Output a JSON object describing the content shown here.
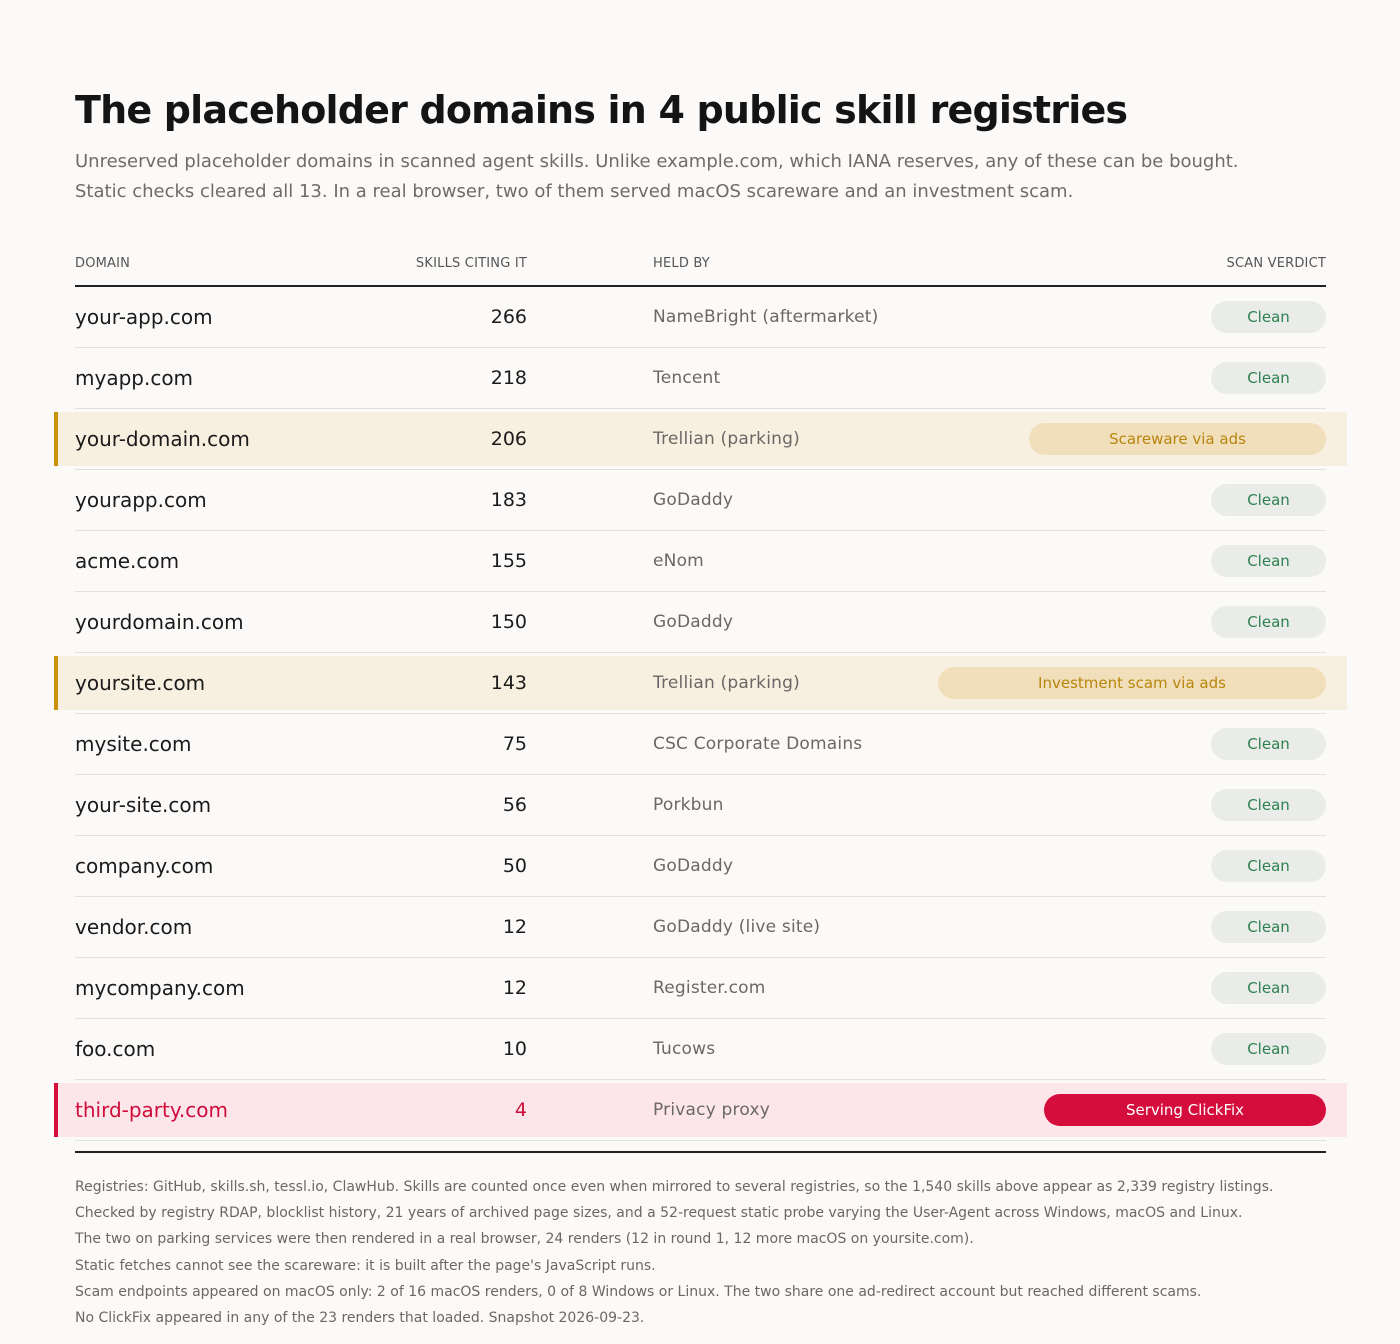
{
  "header": {
    "title": "The placeholder domains in 4 public skill registries",
    "subtitle_lines": [
      "Unreserved placeholder domains in scanned agent skills. Unlike example.com, which IANA reserves, any of these can be bought.",
      "Static checks cleared all 13. In a real browser, two of them served macOS scareware and an investment scam."
    ]
  },
  "table": {
    "columns": {
      "domain": "DOMAIN",
      "skills": "SKILLS CITING IT",
      "held_by": "HELD BY",
      "verdict": "SCAN VERDICT"
    },
    "rows": [
      {
        "domain": "your-app.com",
        "skills": "266",
        "held_by": "NameBright (aftermarket)",
        "verdict": "Clean",
        "status": "clean"
      },
      {
        "domain": "myapp.com",
        "skills": "218",
        "held_by": "Tencent",
        "verdict": "Clean",
        "status": "clean"
      },
      {
        "domain": "your-domain.com",
        "skills": "206",
        "held_by": "Trellian (parking)",
        "verdict": "Scareware via ads",
        "status": "amber"
      },
      {
        "domain": "yourapp.com",
        "skills": "183",
        "held_by": "GoDaddy",
        "verdict": "Clean",
        "status": "clean"
      },
      {
        "domain": "acme.com",
        "skills": "155",
        "held_by": "eNom",
        "verdict": "Clean",
        "status": "clean"
      },
      {
        "domain": "yourdomain.com",
        "skills": "150",
        "held_by": "GoDaddy",
        "verdict": "Clean",
        "status": "clean"
      },
      {
        "domain": "yoursite.com",
        "skills": "143",
        "held_by": "Trellian (parking)",
        "verdict": "Investment scam via ads",
        "status": "amber"
      },
      {
        "domain": "mysite.com",
        "skills": "75",
        "held_by": "CSC Corporate Domains",
        "verdict": "Clean",
        "status": "clean"
      },
      {
        "domain": "your-site.com",
        "skills": "56",
        "held_by": "Porkbun",
        "verdict": "Clean",
        "status": "clean"
      },
      {
        "domain": "company.com",
        "skills": "50",
        "held_by": "GoDaddy",
        "verdict": "Clean",
        "status": "clean"
      },
      {
        "domain": "vendor.com",
        "skills": "12",
        "held_by": "GoDaddy (live site)",
        "verdict": "Clean",
        "status": "clean"
      },
      {
        "domain": "mycompany.com",
        "skills": "12",
        "held_by": "Register.com",
        "verdict": "Clean",
        "status": "clean"
      },
      {
        "domain": "foo.com",
        "skills": "10",
        "held_by": "Tucows",
        "verdict": "Clean",
        "status": "clean"
      },
      {
        "domain": "third-party.com",
        "skills": "4",
        "held_by": "Privacy proxy",
        "verdict": "Serving ClickFix",
        "status": "red"
      }
    ]
  },
  "notes": [
    "Registries: GitHub, skills.sh, tessl.io, ClawHub. Skills are counted once even when mirrored to several registries, so the 1,540 skills above appear as 2,339 registry listings.",
    "Checked by registry RDAP, blocklist history, 21 years of archived page sizes, and a 52-request static probe varying the User-Agent across Windows, macOS and Linux.",
    "The two on parking services were then rendered in a real browser, 24 renders (12 in round 1, 12 more macOS on yoursite.com).",
    "Static fetches cannot see the scareware: it is built after the page's JavaScript runs.",
    "Scam endpoints appeared on macOS only: 2 of 16 macOS renders, 0 of 8 Windows or Linux. The two share one ad-redirect account but reached different scams.",
    "No ClickFix appeared in any of the 23 renders that loaded. Snapshot 2026-09-23."
  ],
  "colors": {
    "clean_text": "#2f8050",
    "amber_accent": "#c8920a",
    "red_accent": "#d40d3c"
  }
}
